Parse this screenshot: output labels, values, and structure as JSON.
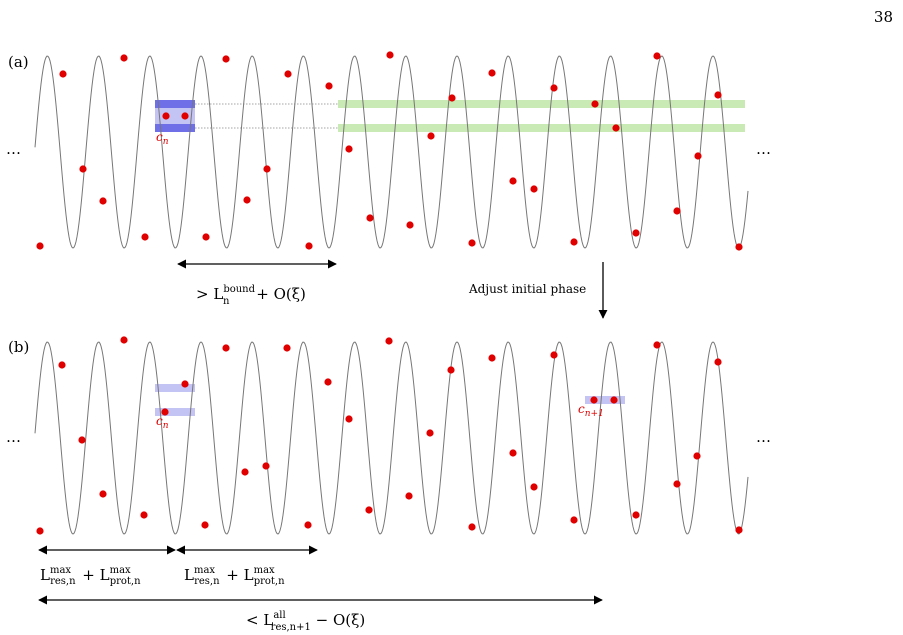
{
  "page_number": "38",
  "panels": [
    {
      "label": "(a)",
      "dots_left": "…",
      "dots_right": "…",
      "cell_label": "c",
      "cell_label_sub": "n",
      "length_label": {
        "prefix": "> L",
        "sup": "bound",
        "sub": "n",
        "suffix": " + O(ξ)"
      }
    },
    {
      "label": "(b)",
      "dots_left": "…",
      "dots_right": "…",
      "cell_label": "c",
      "cell_label_sub": "n",
      "cell_label_next": "c",
      "cell_label_next_sub": "n+1",
      "length_label_1": {
        "part1": "L",
        "sup1": "max",
        "sub1": "res,n",
        "plus": " + L",
        "sup2": "max",
        "sub2": "prot,n"
      },
      "length_label_2": {
        "part1": "L",
        "sup1": "max",
        "sub1": "res,n",
        "plus": " + L",
        "sup2": "max",
        "sub2": "prot,n"
      },
      "length_label_total": {
        "prefix": "< L",
        "sup": "all",
        "sub": "res,n+1",
        "suffix": " − O(ξ)"
      }
    }
  ],
  "arrow_caption": "Adjust initial phase",
  "colors": {
    "wave": "#777777",
    "dot": "#e00000",
    "cell_blue": "#6f6fe8",
    "cell_blue_light": "#c4c4f4",
    "band_green": "#c9eab4",
    "label_red": "#e00000"
  }
}
